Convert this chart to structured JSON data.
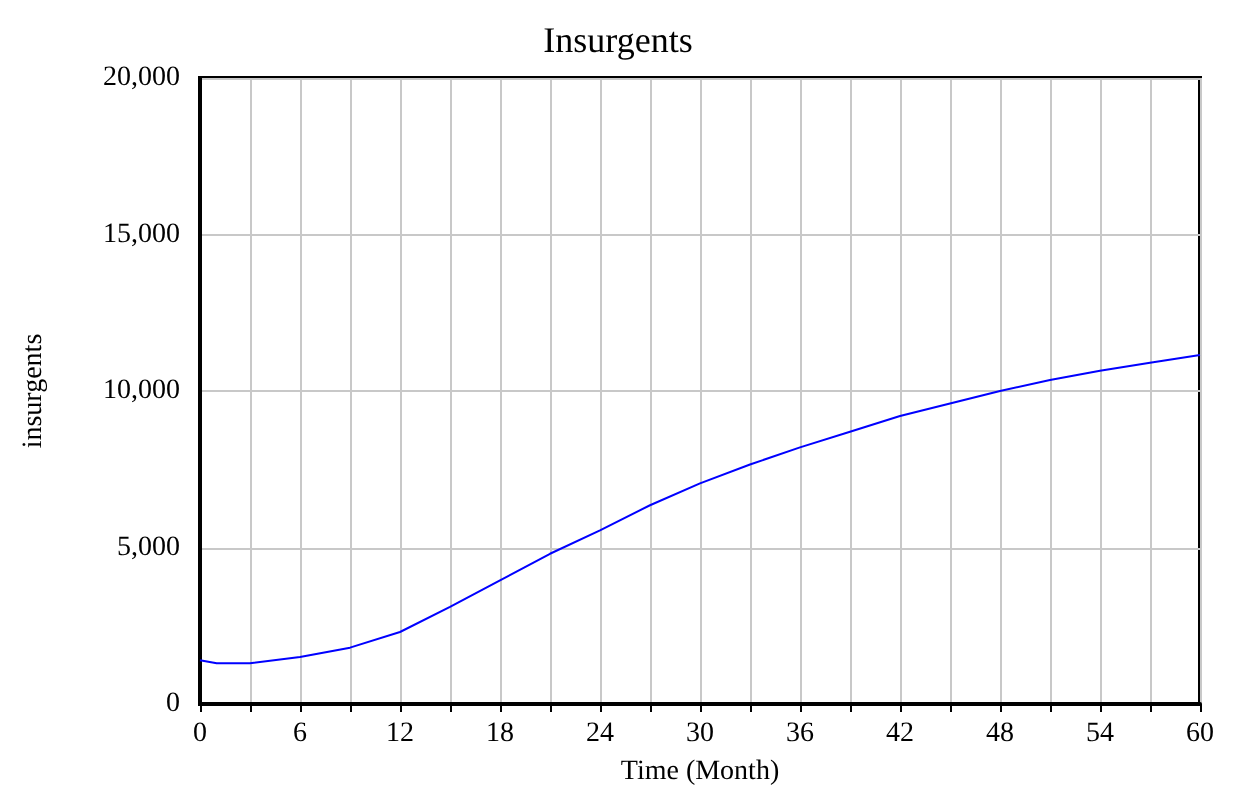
{
  "chart_data": {
    "type": "line",
    "title": "Insurgents",
    "xlabel": "Time (Month)",
    "ylabel": "insurgents",
    "x": [
      0,
      1,
      3,
      6,
      9,
      12,
      15,
      18,
      21,
      24,
      27,
      30,
      33,
      36,
      39,
      42,
      45,
      48,
      51,
      54,
      57,
      60
    ],
    "series": [
      {
        "color": "#0000ff",
        "values": [
          1400,
          1300,
          1300,
          1500,
          1800,
          2300,
          3100,
          3950,
          4800,
          5550,
          6350,
          7050,
          7650,
          8200,
          8700,
          9200,
          9600,
          10000,
          10350,
          10650,
          10900,
          11150
        ]
      }
    ],
    "xlim": [
      0,
      60
    ],
    "xticks": [
      0,
      {
        "value": 3,
        "label": null
      },
      6,
      {
        "value": 9,
        "label": null
      },
      12,
      {
        "value": 15,
        "label": null
      },
      18,
      {
        "value": 21,
        "label": null
      },
      24,
      {
        "value": 27,
        "label": null
      },
      30,
      {
        "value": 33,
        "label": null
      },
      36,
      {
        "value": 39,
        "label": null
      },
      42,
      {
        "value": 45,
        "label": null
      },
      48,
      {
        "value": 51,
        "label": null
      },
      54,
      {
        "value": 57,
        "label": null
      },
      60
    ],
    "ylim": [
      0,
      20000
    ],
    "yticks": [
      0,
      {
        "value": 5000,
        "label": "5,000"
      },
      {
        "value": 10000,
        "label": "10,000"
      },
      {
        "value": 15000,
        "label": "15,000"
      },
      {
        "value": 20000,
        "label": "20,000"
      }
    ],
    "grid": true,
    "marker": "none",
    "line_style": "solid"
  }
}
